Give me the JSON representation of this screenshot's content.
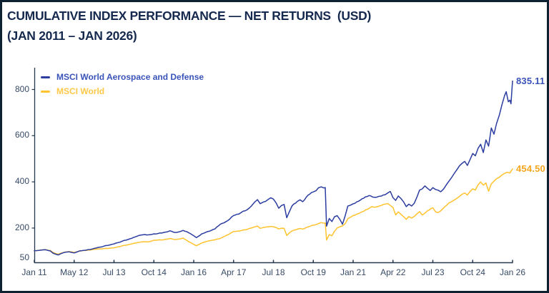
{
  "header": {
    "line1": "CUMULATIVE INDEX PERFORMANCE — NET RETURNS  (USD)",
    "line2": "(JAN 2011 – JAN 2026)"
  },
  "colors": {
    "title": "#16294e",
    "axis": "#25384e",
    "tick_labels": "#374a66",
    "aerospace_line": "#2c3da0",
    "aerospace_text": "#3a53b8",
    "world_line": "#ffc32e",
    "world_text": "#f6a61f",
    "world_legend_text": "#ffc848",
    "frame_border": "#0d2130"
  },
  "chart_data": {
    "type": "line",
    "title": "CUMULATIVE INDEX PERFORMANCE — NET RETURNS (USD)",
    "subtitle": "(JAN 2011 – JAN 2026)",
    "grid": false,
    "legend_position": "top-left",
    "x_axis": {
      "unit": "months since Jan 2011",
      "min": 0,
      "max": 180,
      "tick_labels": [
        "Jan 11",
        "May 12",
        "Jul 13",
        "Oct 14",
        "Jan 16",
        "Apr 17",
        "Jul 18",
        "Oct 19",
        "Jan 21",
        "Apr 22",
        "Jul 23",
        "Oct 24",
        "Jan 26"
      ]
    },
    "y_axis": {
      "min": 50,
      "max": 870,
      "ticks": [
        800,
        600,
        400,
        200,
        50
      ]
    },
    "series": [
      {
        "name": "MSCI World Aerospace and Defense",
        "color": "#2c3da0",
        "legend_text_color": "#3a53b8",
        "end_label": "835.11",
        "end_value": 835.11,
        "points": [
          [
            0,
            100
          ],
          [
            1,
            101
          ],
          [
            2,
            103
          ],
          [
            4,
            105
          ],
          [
            6,
            99
          ],
          [
            7,
            90
          ],
          [
            8,
            85
          ],
          [
            9,
            82
          ],
          [
            10,
            88
          ],
          [
            11,
            92
          ],
          [
            13,
            96
          ],
          [
            14,
            93
          ],
          [
            15,
            91
          ],
          [
            17,
            99
          ],
          [
            19,
            102
          ],
          [
            21,
            106
          ],
          [
            24,
            114
          ],
          [
            27,
            122
          ],
          [
            30,
            130
          ],
          [
            33,
            141
          ],
          [
            36,
            152
          ],
          [
            38,
            160
          ],
          [
            39,
            166
          ],
          [
            41,
            170
          ],
          [
            43,
            168
          ],
          [
            45,
            173
          ],
          [
            48,
            177
          ],
          [
            50,
            183
          ],
          [
            51,
            186
          ],
          [
            53,
            179
          ],
          [
            55,
            184
          ],
          [
            56,
            188
          ],
          [
            58,
            180
          ],
          [
            60,
            166
          ],
          [
            61,
            157
          ],
          [
            63,
            173
          ],
          [
            66,
            186
          ],
          [
            68,
            196
          ],
          [
            70,
            214
          ],
          [
            72,
            224
          ],
          [
            75,
            252
          ],
          [
            77,
            260
          ],
          [
            78,
            267
          ],
          [
            80,
            276
          ],
          [
            81,
            285
          ],
          [
            83,
            310
          ],
          [
            84,
            322
          ],
          [
            85,
            305
          ],
          [
            87,
            316
          ],
          [
            88,
            322
          ],
          [
            89,
            329
          ],
          [
            90,
            324
          ],
          [
            91,
            305
          ],
          [
            92,
            284
          ],
          [
            93,
            296
          ],
          [
            94,
            300
          ],
          [
            95,
            245
          ],
          [
            96,
            270
          ],
          [
            97,
            295
          ],
          [
            99,
            312
          ],
          [
            100,
            320
          ],
          [
            101,
            312
          ],
          [
            103,
            342
          ],
          [
            105,
            356
          ],
          [
            106,
            362
          ],
          [
            107,
            372
          ],
          [
            108,
            377
          ],
          [
            109,
            371
          ],
          [
            109.5,
            374
          ],
          [
            110,
            205
          ],
          [
            111,
            240
          ],
          [
            112,
            226
          ],
          [
            113,
            248
          ],
          [
            114,
            254
          ],
          [
            115,
            236
          ],
          [
            116,
            216
          ],
          [
            117,
            252
          ],
          [
            118,
            292
          ],
          [
            120,
            302
          ],
          [
            122,
            316
          ],
          [
            124,
            330
          ],
          [
            126,
            338
          ],
          [
            128,
            330
          ],
          [
            130,
            337
          ],
          [
            132,
            344
          ],
          [
            133,
            352
          ],
          [
            134,
            357
          ],
          [
            135,
            331
          ],
          [
            136,
            317
          ],
          [
            137,
            336
          ],
          [
            138,
            326
          ],
          [
            139,
            310
          ],
          [
            140,
            292
          ],
          [
            141,
            303
          ],
          [
            142,
            294
          ],
          [
            143,
            308
          ],
          [
            144,
            332
          ],
          [
            145,
            362
          ],
          [
            146,
            368
          ],
          [
            147,
            378
          ],
          [
            148,
            370
          ],
          [
            149,
            361
          ],
          [
            150,
            373
          ],
          [
            151,
            368
          ],
          [
            152,
            363
          ],
          [
            153,
            356
          ],
          [
            154,
            368
          ],
          [
            155,
            382
          ],
          [
            156,
            400
          ],
          [
            157,
            415
          ],
          [
            158,
            432
          ],
          [
            159,
            452
          ],
          [
            160,
            468
          ],
          [
            161,
            480
          ],
          [
            162,
            490
          ],
          [
            163,
            468
          ],
          [
            164,
            495
          ],
          [
            165,
            520
          ],
          [
            166,
            508
          ],
          [
            167,
            544
          ],
          [
            168,
            560
          ],
          [
            169,
            526
          ],
          [
            170,
            584
          ],
          [
            171,
            553
          ],
          [
            172,
            634
          ],
          [
            173,
            605
          ],
          [
            174,
            648
          ],
          [
            175,
            686
          ],
          [
            176,
            728
          ],
          [
            177,
            770
          ],
          [
            177.6,
            790
          ],
          [
            178.4,
            740
          ],
          [
            179,
            752
          ],
          [
            179.4,
            735
          ],
          [
            180,
            835.11
          ]
        ]
      },
      {
        "name": "MSCI World",
        "color": "#ffc32e",
        "legend_text_color": "#ffc848",
        "end_label": "454.50",
        "end_value": 454.5,
        "points": [
          [
            0,
            100
          ],
          [
            1,
            101
          ],
          [
            2,
            103
          ],
          [
            4,
            105
          ],
          [
            6,
            101
          ],
          [
            7,
            93
          ],
          [
            8,
            88
          ],
          [
            9,
            85
          ],
          [
            10,
            90
          ],
          [
            11,
            93
          ],
          [
            13,
            97
          ],
          [
            14,
            95
          ],
          [
            15,
            93
          ],
          [
            17,
            99
          ],
          [
            19,
            101
          ],
          [
            21,
            104
          ],
          [
            24,
            108
          ],
          [
            27,
            110
          ],
          [
            30,
            113
          ],
          [
            33,
            121
          ],
          [
            36,
            128
          ],
          [
            38,
            133
          ],
          [
            39,
            136
          ],
          [
            41,
            139
          ],
          [
            43,
            138
          ],
          [
            45,
            146
          ],
          [
            48,
            147
          ],
          [
            50,
            151
          ],
          [
            51,
            153
          ],
          [
            53,
            149
          ],
          [
            55,
            152
          ],
          [
            56,
            155
          ],
          [
            58,
            141
          ],
          [
            60,
            128
          ],
          [
            61,
            122
          ],
          [
            63,
            134
          ],
          [
            66,
            144
          ],
          [
            68,
            148
          ],
          [
            70,
            153
          ],
          [
            72,
            165
          ],
          [
            75,
            183
          ],
          [
            77,
            186
          ],
          [
            78,
            188
          ],
          [
            80,
            192
          ],
          [
            81,
            196
          ],
          [
            83,
            203
          ],
          [
            84,
            207
          ],
          [
            85,
            198
          ],
          [
            87,
            203
          ],
          [
            89,
            205
          ],
          [
            90,
            204
          ],
          [
            91,
            200
          ],
          [
            92,
            194
          ],
          [
            93,
            198
          ],
          [
            94,
            197
          ],
          [
            95,
            167
          ],
          [
            96,
            178
          ],
          [
            97,
            186
          ],
          [
            99,
            193
          ],
          [
            100,
            196
          ],
          [
            101,
            194
          ],
          [
            103,
            204
          ],
          [
            105,
            211
          ],
          [
            106,
            214
          ],
          [
            107,
            218
          ],
          [
            108,
            222
          ],
          [
            109,
            219
          ],
          [
            109.5,
            221
          ],
          [
            110,
            146
          ],
          [
            111,
            170
          ],
          [
            112,
            165
          ],
          [
            113,
            185
          ],
          [
            114,
            200
          ],
          [
            115,
            204
          ],
          [
            116,
            208
          ],
          [
            117,
            218
          ],
          [
            118,
            238
          ],
          [
            120,
            252
          ],
          [
            122,
            262
          ],
          [
            124,
            272
          ],
          [
            126,
            283
          ],
          [
            127,
            291
          ],
          [
            128,
            288
          ],
          [
            130,
            295
          ],
          [
            132,
            303
          ],
          [
            133,
            306
          ],
          [
            134,
            296
          ],
          [
            135,
            288
          ],
          [
            136,
            255
          ],
          [
            137,
            267
          ],
          [
            138,
            258
          ],
          [
            139,
            247
          ],
          [
            140,
            236
          ],
          [
            141,
            249
          ],
          [
            142,
            242
          ],
          [
            143,
            250
          ],
          [
            144,
            260
          ],
          [
            145,
            269
          ],
          [
            146,
            255
          ],
          [
            148,
            273
          ],
          [
            150,
            286
          ],
          [
            151,
            270
          ],
          [
            152,
            266
          ],
          [
            153,
            273
          ],
          [
            154,
            286
          ],
          [
            156,
            306
          ],
          [
            157,
            312
          ],
          [
            158,
            318
          ],
          [
            159,
            328
          ],
          [
            160,
            336
          ],
          [
            161,
            345
          ],
          [
            162,
            352
          ],
          [
            163,
            341
          ],
          [
            164,
            356
          ],
          [
            165,
            368
          ],
          [
            166,
            361
          ],
          [
            167,
            386
          ],
          [
            168,
            398
          ],
          [
            169,
            384
          ],
          [
            170,
            396
          ],
          [
            171,
            358
          ],
          [
            172,
            390
          ],
          [
            173,
            402
          ],
          [
            174,
            410
          ],
          [
            175,
            418
          ],
          [
            176,
            427
          ],
          [
            177,
            434
          ],
          [
            178,
            442
          ],
          [
            179,
            437
          ],
          [
            180,
            454.5
          ]
        ]
      }
    ]
  }
}
